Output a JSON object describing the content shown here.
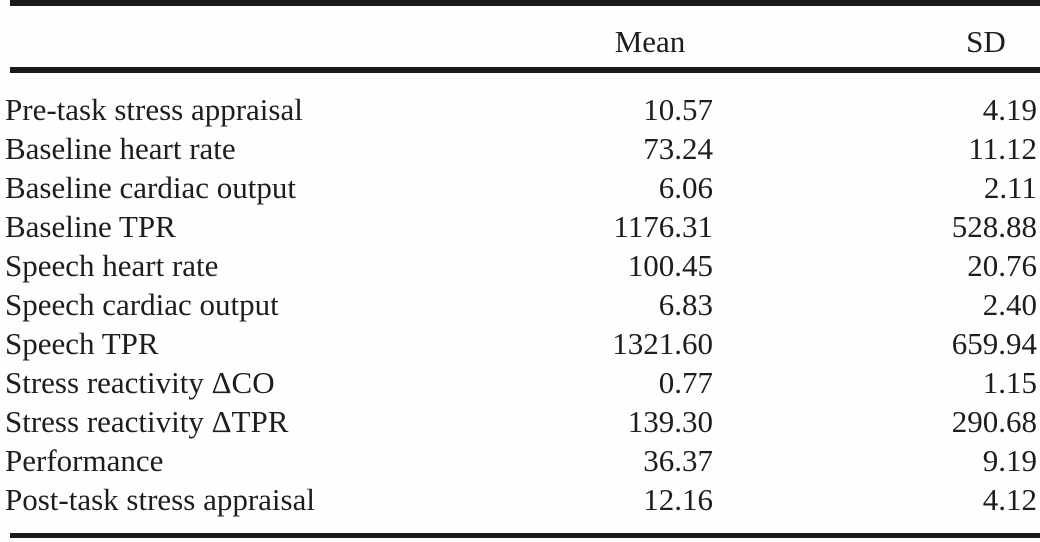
{
  "table": {
    "columns": {
      "label": "",
      "mean": "Mean",
      "sd": "SD"
    },
    "rows": [
      {
        "label": "Pre-task stress appraisal",
        "mean": "10.57",
        "sd": "4.19"
      },
      {
        "label": "Baseline heart rate",
        "mean": "73.24",
        "sd": "11.12"
      },
      {
        "label": "Baseline cardiac output",
        "mean": "6.06",
        "sd": "2.11"
      },
      {
        "label": "Baseline TPR",
        "mean": "1176.31",
        "sd": "528.88"
      },
      {
        "label": "Speech heart rate",
        "mean": "100.45",
        "sd": "20.76"
      },
      {
        "label": "Speech cardiac output",
        "mean": "6.83",
        "sd": "2.40"
      },
      {
        "label": "Speech TPR",
        "mean": "1321.60",
        "sd": "659.94"
      },
      {
        "label": "Stress reactivity ΔCO",
        "mean": "0.77",
        "sd": "1.15"
      },
      {
        "label": "Stress reactivity ΔTPR",
        "mean": "139.30",
        "sd": "290.68"
      },
      {
        "label": "Performance",
        "mean": "36.37",
        "sd": "9.19"
      },
      {
        "label": "Post-task stress appraisal",
        "mean": "12.16",
        "sd": "4.12"
      }
    ]
  },
  "colors": {
    "background": "#fefefe",
    "text": "#1d1d1d",
    "rule": "#1a1a1a"
  }
}
